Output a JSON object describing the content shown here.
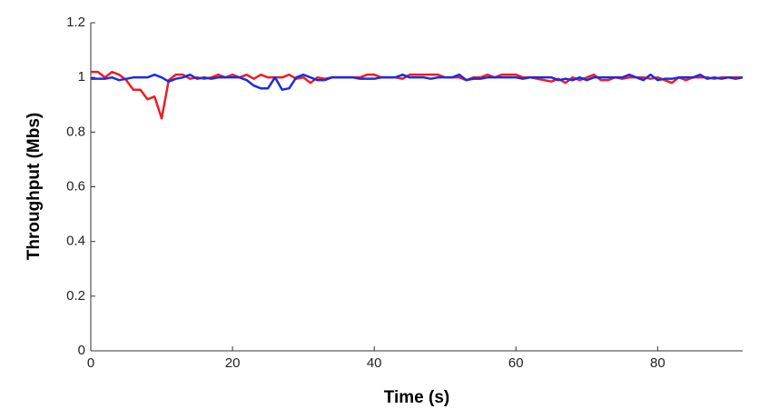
{
  "chart_data": {
    "type": "line",
    "xlabel": "Time (s)",
    "ylabel": "Throughput (Mbs)",
    "x": [
      0,
      1,
      2,
      3,
      4,
      5,
      6,
      7,
      8,
      9,
      10,
      11,
      12,
      13,
      14,
      15,
      16,
      17,
      18,
      19,
      20,
      21,
      22,
      23,
      24,
      25,
      26,
      27,
      28,
      29,
      30,
      31,
      32,
      33,
      34,
      35,
      36,
      37,
      38,
      39,
      40,
      41,
      42,
      43,
      44,
      45,
      46,
      47,
      48,
      49,
      50,
      51,
      52,
      53,
      54,
      55,
      56,
      57,
      58,
      59,
      60,
      61,
      62,
      63,
      64,
      65,
      66,
      67,
      68,
      69,
      70,
      71,
      72,
      73,
      74,
      75,
      76,
      77,
      78,
      79,
      80,
      81,
      82,
      83,
      84,
      85,
      86,
      87,
      88,
      89,
      90,
      91,
      92
    ],
    "series": [
      {
        "color": "#ee1c25",
        "values": [
          1.02,
          1.02,
          1.0,
          1.02,
          1.01,
          0.99,
          0.955,
          0.955,
          0.92,
          0.93,
          0.85,
          0.99,
          1.01,
          1.01,
          0.995,
          1.0,
          0.995,
          1.0,
          1.01,
          1.0,
          1.01,
          1.0,
          1.01,
          0.995,
          1.01,
          1.0,
          1.0,
          1.0,
          1.01,
          0.995,
          1.0,
          0.98,
          1.0,
          0.995,
          1.0,
          1.0,
          1.0,
          1.0,
          1.0,
          1.01,
          1.01,
          1.0,
          1.0,
          1.0,
          0.995,
          1.01,
          1.01,
          1.01,
          1.01,
          1.01,
          1.0,
          1.0,
          1.0,
          0.99,
          1.0,
          1.0,
          1.01,
          1.0,
          1.01,
          1.01,
          1.01,
          1.0,
          1.0,
          0.995,
          0.99,
          0.985,
          0.995,
          0.98,
          1.0,
          0.99,
          1.0,
          1.01,
          0.99,
          0.99,
          1.0,
          0.995,
          1.0,
          1.0,
          1.0,
          0.995,
          1.0,
          0.99,
          0.98,
          1.0,
          0.99,
          1.0,
          1.0,
          1.0,
          0.995,
          1.0,
          1.0,
          1.0,
          1.0
        ]
      },
      {
        "color": "#1a2be6",
        "values": [
          0.995,
          0.995,
          0.995,
          1.0,
          0.99,
          0.995,
          1.0,
          1.0,
          1.0,
          1.01,
          1.0,
          0.985,
          0.995,
          1.0,
          1.01,
          0.995,
          1.0,
          0.995,
          1.0,
          1.0,
          1.0,
          1.0,
          0.99,
          0.97,
          0.96,
          0.96,
          1.0,
          0.955,
          0.96,
          1.0,
          1.01,
          1.0,
          0.99,
          0.99,
          1.0,
          1.0,
          1.0,
          1.0,
          0.995,
          0.995,
          0.995,
          1.0,
          1.0,
          1.0,
          1.01,
          1.0,
          1.0,
          1.0,
          0.995,
          1.0,
          1.0,
          1.0,
          1.01,
          0.99,
          0.995,
          0.995,
          1.0,
          1.0,
          1.0,
          1.0,
          1.0,
          0.995,
          1.0,
          1.0,
          1.0,
          1.0,
          0.99,
          0.995,
          0.99,
          1.0,
          0.99,
          1.0,
          1.0,
          1.0,
          1.0,
          1.0,
          1.01,
          1.0,
          0.99,
          1.01,
          0.99,
          0.995,
          0.995,
          1.0,
          1.0,
          1.0,
          1.01,
          0.995,
          1.0,
          0.995,
          1.0,
          0.995,
          1.0
        ]
      }
    ],
    "xlim": [
      0,
      92
    ],
    "xticks": [
      0,
      20,
      40,
      60,
      80
    ],
    "ylim": [
      0,
      1.2
    ],
    "yticks": [
      0,
      0.2,
      0.4,
      0.6,
      0.8,
      1,
      1.2
    ],
    "grid": false
  }
}
